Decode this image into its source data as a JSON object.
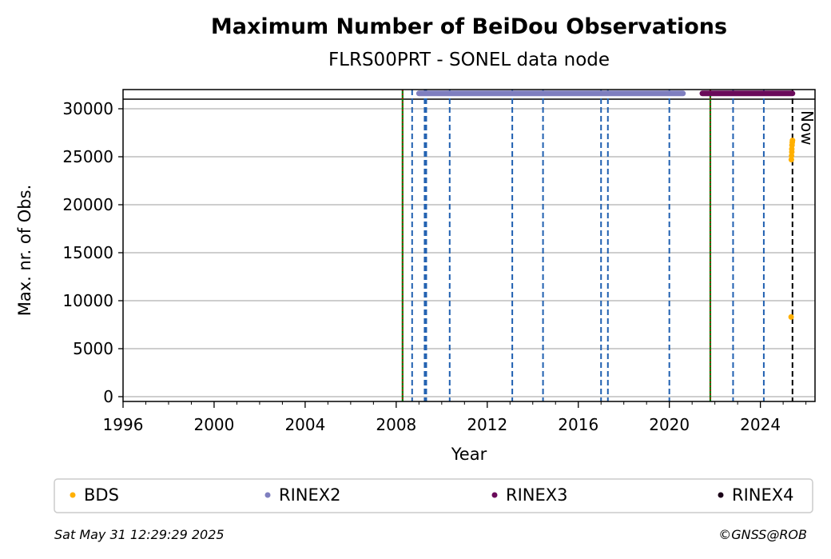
{
  "chart_data": {
    "type": "scatter",
    "title": "Maximum Number of BeiDou Observations",
    "subtitle": "FLRS00PRT - SONEL data node",
    "xlabel": "Year",
    "ylabel": "Max. nr. of Obs.",
    "xlim": [
      1996,
      2026.4
    ],
    "ylim": [
      -500,
      32000
    ],
    "x_ticks": [
      1996,
      2000,
      2004,
      2008,
      2012,
      2016,
      2020,
      2024
    ],
    "y_ticks": [
      0,
      5000,
      10000,
      15000,
      20000,
      25000,
      30000
    ],
    "grid": "horizontal",
    "reference_line_y": 31000,
    "now_line": {
      "x": 2025.41,
      "label": "Now"
    },
    "green_lines": [
      2008.28,
      2021.8
    ],
    "red_dotted_lines": [
      2008.28,
      2021.8
    ],
    "blue_dashed_lines": [
      2008.7,
      2009.25,
      2009.32,
      2010.35,
      2013.1,
      2014.45,
      2017.0,
      2017.3,
      2020.0,
      2022.8,
      2024.15
    ],
    "series": [
      {
        "name": "BDS",
        "color": "#ffb000",
        "marker": "dot",
        "points": [
          [
            2025.35,
            8300
          ],
          [
            2025.36,
            24700
          ],
          [
            2025.37,
            25100
          ],
          [
            2025.38,
            25500
          ],
          [
            2025.38,
            25800
          ],
          [
            2025.39,
            26200
          ],
          [
            2025.4,
            26500
          ],
          [
            2025.41,
            26700
          ]
        ]
      },
      {
        "name": "RINEX2",
        "color": "#7f7fbf",
        "marker": "band",
        "segments": [
          [
            2009.0,
            2020.6,
            31600
          ]
        ]
      },
      {
        "name": "RINEX3",
        "color": "#6a0a5a",
        "marker": "band",
        "segments": [
          [
            2021.45,
            2025.41,
            31600
          ]
        ]
      },
      {
        "name": "RINEX4",
        "color": "#1a0018",
        "marker": "dot",
        "points": []
      }
    ],
    "legend_position": "bottom"
  },
  "footer": {
    "timestamp": "Sat May 31 12:29:29 2025",
    "credit": "©GNSS@ROB"
  }
}
